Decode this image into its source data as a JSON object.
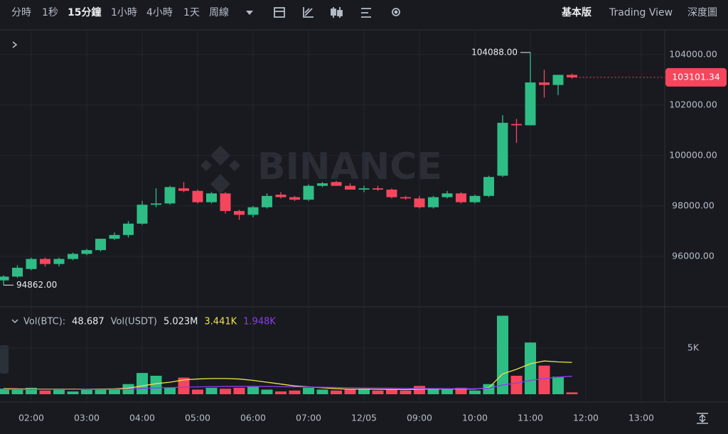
{
  "toolbar": {
    "intervals": [
      "分時",
      "1秒",
      "15分鐘",
      "1小時",
      "4小時",
      "1天",
      "周線"
    ],
    "views": [
      "基本版",
      "Trading View",
      "深度圖"
    ]
  },
  "watermark": "BINANCE",
  "chart_data": [
    {
      "type": "candlestick",
      "categories": [
        null,
        null,
        "02:00",
        null,
        null,
        null,
        "03:00",
        null,
        null,
        null,
        "04:00",
        null,
        null,
        null,
        "05:00",
        null,
        null,
        null,
        "06:00",
        null,
        null,
        null,
        "07:00",
        null,
        null,
        null,
        "12/05",
        null,
        null,
        null,
        "09:00",
        null,
        null,
        null,
        "10:00",
        null,
        null,
        null,
        "11:00",
        null,
        null,
        null,
        "12:00",
        null,
        null,
        null,
        "13:00",
        null
      ],
      "open": [
        95050,
        95200,
        95500,
        95900,
        95700,
        95900,
        96100,
        96250,
        96700,
        96850,
        97300,
        98050,
        98100,
        98700,
        98600,
        98150,
        98500,
        97800,
        97650,
        97950,
        98450,
        98350,
        98250,
        98800,
        98950,
        98800,
        98650,
        98700,
        98650,
        98350,
        98300,
        97950,
        98350,
        98500,
        98150,
        98400,
        99200,
        101250,
        101200,
        102900,
        102800,
        103200,
        null,
        null,
        null,
        null,
        null,
        null
      ],
      "high": [
        95250,
        95650,
        95950,
        95950,
        95950,
        96150,
        96300,
        96700,
        96950,
        97400,
        98200,
        98700,
        98800,
        98950,
        98650,
        98550,
        98550,
        97850,
        98000,
        98500,
        98550,
        98400,
        98850,
        98950,
        99000,
        98900,
        98800,
        98800,
        98700,
        98400,
        98400,
        98400,
        98600,
        98550,
        98450,
        99200,
        101600,
        101450,
        104088,
        103400,
        103200,
        103250,
        null,
        null,
        null,
        null,
        null,
        null
      ],
      "low": [
        94862,
        95150,
        95450,
        95600,
        95600,
        95850,
        96050,
        96200,
        96650,
        96750,
        97250,
        97950,
        98050,
        98550,
        98100,
        98100,
        97700,
        97450,
        97550,
        97900,
        98300,
        98200,
        98200,
        98750,
        98800,
        98650,
        98550,
        98600,
        98300,
        98250,
        97900,
        97900,
        98300,
        98100,
        98100,
        98350,
        99150,
        100500,
        101200,
        102300,
        102400,
        103050,
        null,
        null,
        null,
        null,
        null,
        null
      ],
      "close": [
        95200,
        95550,
        95900,
        95700,
        95900,
        96100,
        96250,
        96700,
        96850,
        97300,
        98050,
        98100,
        98750,
        98600,
        98150,
        98500,
        97800,
        97650,
        97950,
        98400,
        98350,
        98250,
        98800,
        98900,
        98800,
        98650,
        98700,
        98650,
        98350,
        98300,
        97950,
        98350,
        98500,
        98150,
        98400,
        99150,
        101300,
        101200,
        102900,
        102800,
        103200,
        103101.34,
        null,
        null,
        null,
        null,
        null,
        null
      ],
      "up_color": "#2ebd85",
      "down_color": "#f6465d",
      "ylim": [
        94056,
        104930
      ],
      "yticks": [
        {
          "value": 96000,
          "label": "96000.00"
        },
        {
          "value": 98000,
          "label": "98000.00"
        },
        {
          "value": 100000,
          "label": "100000.00"
        },
        {
          "value": 102000,
          "label": "102000.00"
        },
        {
          "value": 104000,
          "label": "104000.00"
        }
      ],
      "max_label": "104088.00",
      "min_label": "94862.00",
      "last_label": "103101.34",
      "grid": true
    },
    {
      "type": "bar",
      "legend": [
        "Vol(BTC):",
        "48.687",
        "Vol(USDT)",
        "5.023M"
      ],
      "values": [
        600,
        500,
        700,
        400,
        600,
        300,
        500,
        600,
        600,
        1100,
        2300,
        2000,
        700,
        1800,
        500,
        700,
        600,
        700,
        800,
        500,
        300,
        400,
        700,
        500,
        400,
        500,
        600,
        400,
        500,
        400,
        900,
        600,
        500,
        700,
        400,
        1100,
        8500,
        2000,
        5600,
        3100,
        1900,
        200,
        null,
        null,
        null,
        null,
        null,
        null
      ],
      "series": [
        {
          "color": "#f0e24a",
          "current_label": "3.441K",
          "values": [
            600,
            580,
            560,
            560,
            550,
            560,
            540,
            560,
            580,
            650,
            900,
            1150,
            1300,
            1550,
            1650,
            1700,
            1700,
            1650,
            1500,
            1300,
            1100,
            900,
            800,
            700,
            600,
            550,
            550,
            530,
            520,
            500,
            550,
            560,
            560,
            560,
            560,
            700,
            2200,
            2700,
            3300,
            3600,
            3500,
            3441,
            null,
            null,
            null,
            null,
            null,
            null
          ]
        },
        {
          "color": "#8c3cf0",
          "current_label": "1.948K",
          "values": [
            520,
            520,
            520,
            520,
            520,
            520,
            520,
            520,
            530,
            550,
            620,
            680,
            720,
            760,
            800,
            820,
            840,
            850,
            850,
            840,
            820,
            800,
            780,
            760,
            730,
            700,
            680,
            660,
            650,
            630,
            620,
            610,
            600,
            600,
            590,
            650,
            1000,
            1200,
            1500,
            1700,
            1850,
            1948,
            null,
            null,
            null,
            null,
            null,
            null
          ]
        }
      ],
      "ylim": [
        0,
        9077
      ],
      "yticks": [
        {
          "value": 5000,
          "label": "5K"
        }
      ],
      "grid": true
    }
  ]
}
